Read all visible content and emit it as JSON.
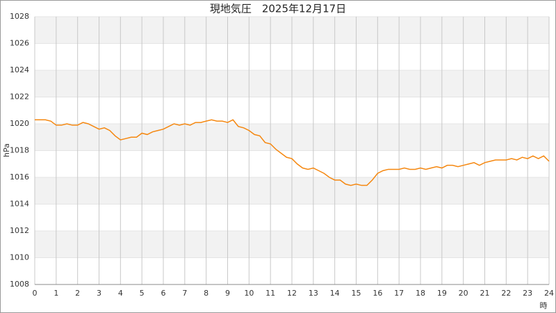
{
  "chart_data": {
    "type": "line",
    "title": "現地気圧　2025年12月17日",
    "y_label": "hPa",
    "x_label": "時",
    "x": [
      0,
      0.25,
      0.5,
      0.75,
      1,
      1.25,
      1.5,
      1.75,
      2,
      2.25,
      2.5,
      2.75,
      3,
      3.25,
      3.5,
      3.75,
      4,
      4.25,
      4.5,
      4.75,
      5,
      5.25,
      5.5,
      5.75,
      6,
      6.25,
      6.5,
      6.75,
      7,
      7.25,
      7.5,
      7.75,
      8,
      8.25,
      8.5,
      8.75,
      9,
      9.25,
      9.5,
      9.75,
      10,
      10.25,
      10.5,
      10.75,
      11,
      11.25,
      11.5,
      11.75,
      12,
      12.25,
      12.5,
      12.75,
      13,
      13.25,
      13.5,
      13.75,
      14,
      14.25,
      14.5,
      14.75,
      15,
      15.25,
      15.5,
      15.75,
      16,
      16.25,
      16.5,
      16.75,
      17,
      17.25,
      17.5,
      17.75,
      18,
      18.25,
      18.5,
      18.75,
      19,
      19.25,
      19.5,
      19.75,
      20,
      20.25,
      20.5,
      20.75,
      21,
      21.25,
      21.5,
      21.75,
      22,
      22.25,
      22.5,
      22.75,
      23,
      23.25,
      23.5,
      23.75,
      24
    ],
    "series": [
      {
        "name": "現地気圧",
        "color": "#f5870f",
        "values": [
          1020.3,
          1020.3,
          1020.3,
          1020.2,
          1019.9,
          1019.9,
          1020.0,
          1019.9,
          1019.9,
          1020.1,
          1020.0,
          1019.8,
          1019.6,
          1019.7,
          1019.5,
          1019.1,
          1018.8,
          1018.9,
          1019.0,
          1019.0,
          1019.3,
          1019.2,
          1019.4,
          1019.5,
          1019.6,
          1019.8,
          1020.0,
          1019.9,
          1020.0,
          1019.9,
          1020.1,
          1020.1,
          1020.2,
          1020.3,
          1020.2,
          1020.2,
          1020.1,
          1020.3,
          1019.8,
          1019.7,
          1019.5,
          1019.2,
          1019.1,
          1018.6,
          1018.5,
          1018.1,
          1017.8,
          1017.5,
          1017.4,
          1017.0,
          1016.7,
          1016.6,
          1016.7,
          1016.5,
          1016.3,
          1016.0,
          1015.8,
          1015.8,
          1015.5,
          1015.4,
          1015.5,
          1015.4,
          1015.4,
          1015.8,
          1016.3,
          1016.5,
          1016.6,
          1016.6,
          1016.6,
          1016.7,
          1016.6,
          1016.6,
          1016.7,
          1016.6,
          1016.7,
          1016.8,
          1016.7,
          1016.9,
          1016.9,
          1016.8,
          1016.9,
          1017.0,
          1017.1,
          1016.9,
          1017.1,
          1017.2,
          1017.3,
          1017.3,
          1017.3,
          1017.4,
          1017.3,
          1017.5,
          1017.4,
          1017.6,
          1017.4,
          1017.6,
          1017.2
        ]
      }
    ],
    "xlim": [
      0,
      24
    ],
    "xticks": [
      0,
      1,
      2,
      3,
      4,
      5,
      6,
      7,
      8,
      9,
      10,
      11,
      12,
      13,
      14,
      15,
      16,
      17,
      18,
      19,
      20,
      21,
      22,
      23,
      24
    ],
    "ylim": [
      1008,
      1028
    ],
    "yticks": [
      1008,
      1010,
      1012,
      1014,
      1016,
      1018,
      1020,
      1022,
      1024,
      1026,
      1028
    ],
    "grid": true,
    "bands": true
  }
}
